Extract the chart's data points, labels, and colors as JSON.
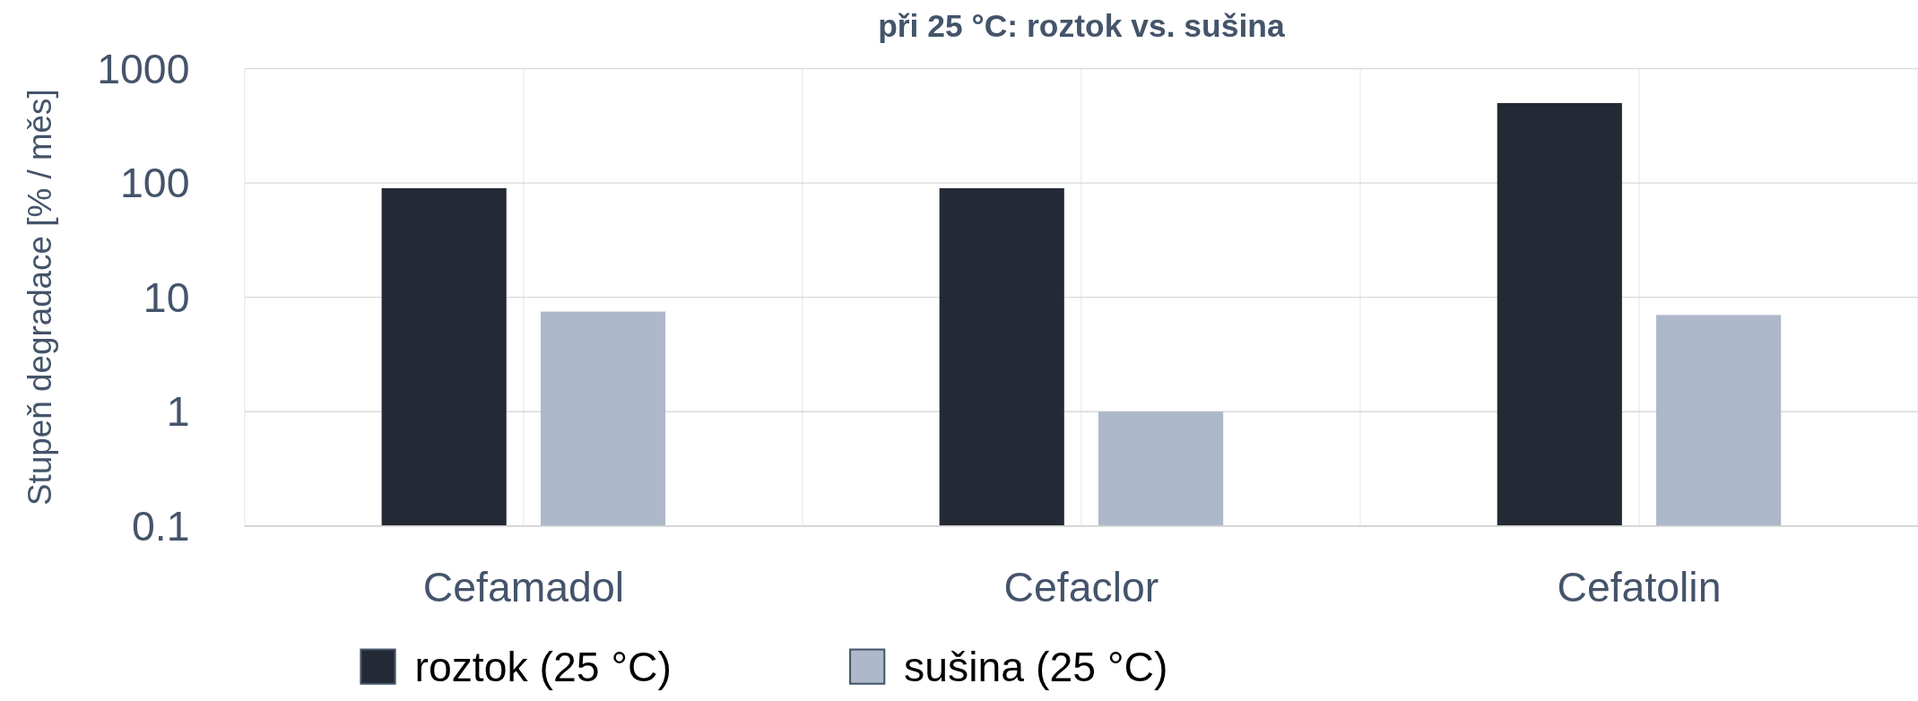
{
  "chart_data": {
    "type": "bar",
    "title": "při 25 °C: roztok vs. sušina",
    "ylabel": "Stupeň degradace [% / měs]",
    "categories": [
      "Cefamadol",
      "Cefaclor",
      "Cefatolin"
    ],
    "series": [
      {
        "name": "roztok (25 °C)",
        "color": "#232a35",
        "values": [
          90,
          90,
          500
        ]
      },
      {
        "name": "sušina (25 °C)",
        "color": "#adb8ca",
        "values": [
          7.5,
          1,
          7
        ]
      }
    ],
    "log": true,
    "ylim": [
      0.1,
      1000
    ],
    "yticks": [
      0.1,
      1,
      10,
      100,
      1000
    ],
    "grid": "xy",
    "legend": "bottom left"
  }
}
